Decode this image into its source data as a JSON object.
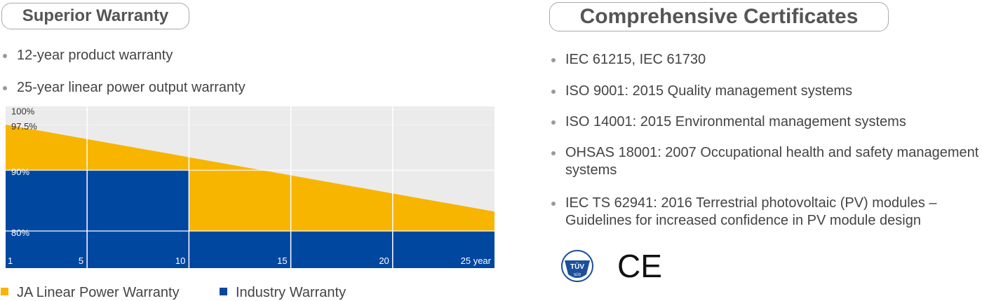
{
  "warranty": {
    "title": "Superior Warranty",
    "bullets": [
      "12-year product warranty",
      "25-year linear power output warranty"
    ]
  },
  "chart_data": {
    "type": "area",
    "xlim": [
      1,
      25
    ],
    "ylim": [
      73.9,
      100.5
    ],
    "xticks": [
      1,
      5,
      10,
      15,
      20,
      {
        "value": 25,
        "label": "25 year"
      }
    ],
    "yticks": [
      {
        "value": 100,
        "label": "100%"
      },
      {
        "value": 97.5,
        "label": "97.5%"
      },
      {
        "value": 90,
        "label": "90%"
      },
      {
        "value": 80,
        "label": "80%"
      }
    ],
    "series": [
      {
        "name": "JA Linear Power Warranty",
        "color": "#f7b500",
        "x": [
          1,
          25
        ],
        "values": [
          97.5,
          83.2
        ]
      },
      {
        "name": "Industry Warranty",
        "color": "#0047a0",
        "x": [
          1,
          10,
          10,
          25
        ],
        "values": [
          90,
          90,
          80,
          80
        ]
      }
    ]
  },
  "certificates": {
    "title": "Comprehensive Certificates",
    "bullets": [
      "IEC 61215, IEC 61730",
      "ISO 9001: 2015 Quality management systems",
      "ISO 14001: 2015 Environmental management systems",
      "OHSAS 18001: 2007 Occupational health and safety management systems",
      "IEC TS 62941: 2016 Terrestrial photovoltaic (PV) modules – Guidelines for increased confidence in PV module design"
    ],
    "logos": [
      "TÜV",
      "SÜD",
      "CE"
    ]
  }
}
